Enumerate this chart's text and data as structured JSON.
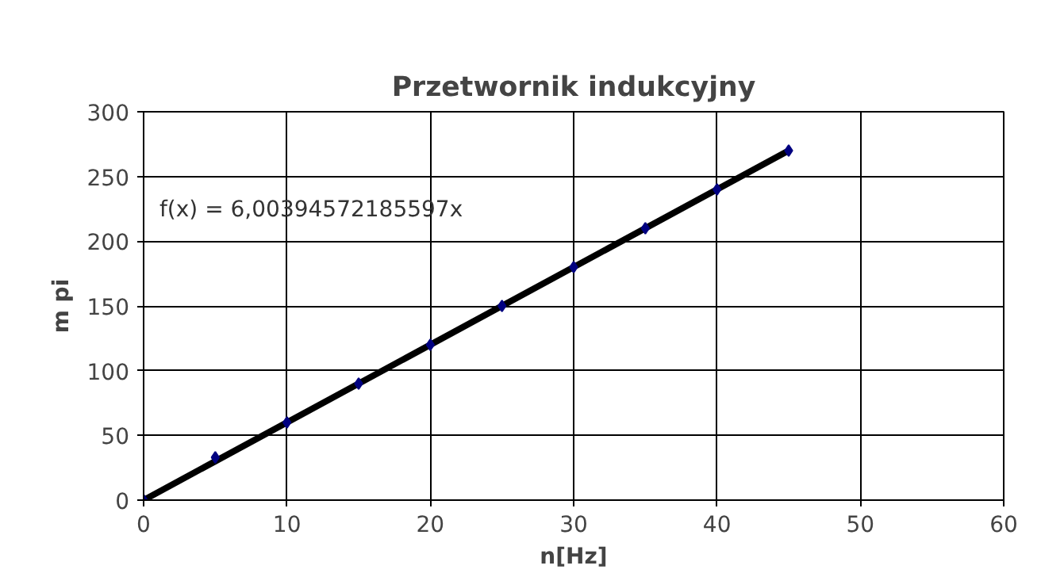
{
  "chart_data": {
    "type": "scatter",
    "title": "Przetwornik indukcyjny",
    "xlabel": "n[Hz]",
    "ylabel": "m pi",
    "x": [
      0,
      5,
      10,
      15,
      20,
      25,
      30,
      35,
      40,
      45
    ],
    "series": [
      {
        "color": "#000080",
        "marker": "diamond",
        "values": [
          0,
          33,
          60,
          90,
          120,
          150,
          180,
          210,
          240,
          270
        ]
      },
      {
        "type": "line",
        "color": "#000000",
        "x": [
          0,
          45
        ],
        "values": [
          0,
          270
        ]
      }
    ],
    "annotations": [
      "f(x) = 6,00394572185597x"
    ],
    "xlim": [
      0,
      60
    ],
    "ylim": [
      0,
      300
    ],
    "xticks": [
      0,
      10,
      20,
      30,
      40,
      50,
      60
    ],
    "yticks": [
      0,
      50,
      100,
      150,
      200,
      250,
      300
    ],
    "grid": true
  }
}
